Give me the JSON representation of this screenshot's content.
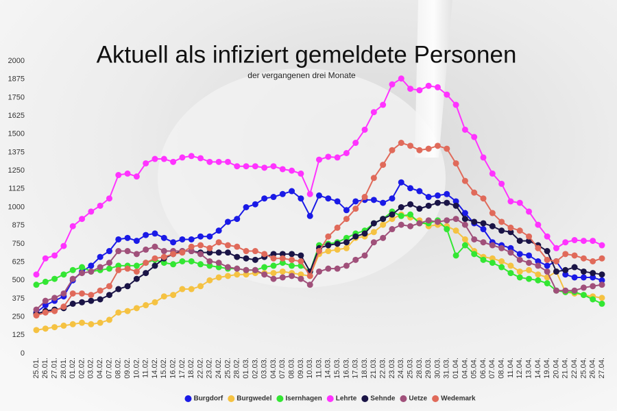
{
  "chart_data": {
    "type": "line",
    "title": "Aktuell als infiziert gemeldete Personen",
    "subtitle": "der vergangenen drei Monate",
    "categories": [
      "25.01.",
      "26.01.",
      "27.01.",
      "28.01.",
      "01.02.",
      "02.02.",
      "03.02.",
      "04.02.",
      "07.02.",
      "08.02.",
      "09.02.",
      "10.02.",
      "11.02.",
      "14.02.",
      "15.02.",
      "16.02.",
      "17.02.",
      "18.02.",
      "22.02.",
      "23.02.",
      "24.02.",
      "25.02.",
      "28.02.",
      "01.03.",
      "02.03.",
      "03.03.",
      "04.03.",
      "07.03.",
      "08.03.",
      "09.03.",
      "10.03.",
      "11.03.",
      "14.03.",
      "15.03.",
      "16.03.",
      "17.03.",
      "18.03.",
      "21.03.",
      "22.03.",
      "23.03.",
      "24.03.",
      "25.03.",
      "28.03.",
      "29.03.",
      "30.03.",
      "31.03.",
      "01.04.",
      "04.04.",
      "05.04.",
      "06.04.",
      "07.04.",
      "08.04.",
      "11.04.",
      "12.04.",
      "13.04.",
      "14.04.",
      "19.04.",
      "20.04.",
      "21.04.",
      "22.04.",
      "25.04.",
      "26.04.",
      "27.04."
    ],
    "series": [
      {
        "name": "Burgdorf",
        "color": "#1a1ae6",
        "values": [
          280,
          330,
          360,
          390,
          500,
          560,
          600,
          660,
          700,
          780,
          790,
          770,
          810,
          820,
          790,
          760,
          780,
          780,
          800,
          800,
          840,
          900,
          920,
          1000,
          1020,
          1060,
          1070,
          1090,
          1110,
          1060,
          940,
          1080,
          1060,
          1040,
          980,
          1040,
          1050,
          1050,
          1030,
          1060,
          1170,
          1130,
          1110,
          1070,
          1080,
          1090,
          1040,
          960,
          890,
          850,
          760,
          740,
          720,
          680,
          670,
          630,
          600,
          630,
          540,
          520,
          520,
          520,
          500
        ]
      },
      {
        "name": "Burgwedel",
        "color": "#f5c242",
        "values": [
          160,
          170,
          180,
          190,
          200,
          210,
          200,
          210,
          230,
          280,
          290,
          310,
          330,
          350,
          390,
          400,
          440,
          440,
          460,
          500,
          520,
          530,
          540,
          540,
          550,
          550,
          550,
          560,
          550,
          540,
          530,
          680,
          700,
          710,
          720,
          790,
          800,
          830,
          880,
          920,
          950,
          930,
          910,
          870,
          880,
          870,
          840,
          780,
          700,
          660,
          650,
          630,
          600,
          560,
          570,
          540,
          520,
          560,
          420,
          410,
          400,
          390,
          380
        ]
      },
      {
        "name": "Isernhagen",
        "color": "#33e633",
        "values": [
          470,
          490,
          510,
          540,
          570,
          590,
          560,
          570,
          580,
          600,
          600,
          600,
          620,
          640,
          620,
          610,
          630,
          630,
          610,
          600,
          590,
          580,
          580,
          570,
          570,
          590,
          600,
          620,
          600,
          600,
          560,
          740,
          750,
          760,
          790,
          820,
          840,
          890,
          920,
          970,
          940,
          950,
          890,
          890,
          910,
          850,
          670,
          740,
          680,
          640,
          620,
          590,
          550,
          520,
          510,
          500,
          480,
          430,
          420,
          420,
          400,
          370,
          340
        ]
      },
      {
        "name": "Lehrte",
        "color": "#ff33ff",
        "values": [
          540,
          650,
          670,
          735,
          870,
          920,
          970,
          1010,
          1060,
          1220,
          1230,
          1210,
          1300,
          1330,
          1330,
          1310,
          1340,
          1350,
          1335,
          1310,
          1310,
          1310,
          1280,
          1280,
          1280,
          1270,
          1280,
          1260,
          1250,
          1230,
          1090,
          1325,
          1345,
          1340,
          1370,
          1440,
          1530,
          1650,
          1700,
          1840,
          1880,
          1810,
          1800,
          1830,
          1820,
          1770,
          1700,
          1530,
          1480,
          1340,
          1230,
          1160,
          1040,
          1030,
          970,
          880,
          800,
          720,
          760,
          775,
          770,
          770,
          740
        ]
      },
      {
        "name": "Sehnde",
        "color": "#1a1446",
        "values": [
          270,
          290,
          300,
          310,
          340,
          350,
          360,
          370,
          400,
          440,
          460,
          510,
          550,
          600,
          650,
          680,
          700,
          700,
          690,
          690,
          690,
          690,
          660,
          650,
          640,
          660,
          680,
          680,
          680,
          670,
          560,
          720,
          740,
          750,
          760,
          800,
          820,
          890,
          920,
          950,
          1000,
          1020,
          990,
          1010,
          1030,
          1030,
          1010,
          920,
          900,
          890,
          870,
          840,
          830,
          770,
          770,
          740,
          700,
          560,
          570,
          590,
          560,
          550,
          540
        ]
      },
      {
        "name": "Uetze",
        "color": "#a0507a",
        "values": [
          300,
          360,
          380,
          410,
          510,
          550,
          560,
          590,
          620,
          700,
          700,
          680,
          710,
          730,
          700,
          700,
          700,
          700,
          680,
          630,
          620,
          590,
          580,
          570,
          570,
          540,
          510,
          520,
          530,
          510,
          470,
          560,
          580,
          580,
          600,
          640,
          670,
          760,
          790,
          850,
          880,
          870,
          890,
          910,
          900,
          910,
          920,
          880,
          780,
          760,
          740,
          720,
          690,
          640,
          620,
          600,
          560,
          430,
          430,
          430,
          450,
          460,
          470
        ]
      },
      {
        "name": "Wedemark",
        "color": "#e06a5a",
        "values": [
          260,
          280,
          290,
          320,
          410,
          410,
          400,
          430,
          460,
          570,
          580,
          560,
          620,
          650,
          660,
          680,
          690,
          730,
          740,
          720,
          760,
          740,
          730,
          700,
          700,
          680,
          650,
          650,
          640,
          630,
          530,
          700,
          800,
          860,
          920,
          990,
          1070,
          1200,
          1290,
          1390,
          1440,
          1420,
          1390,
          1400,
          1420,
          1400,
          1300,
          1180,
          1100,
          1060,
          960,
          900,
          860,
          840,
          800,
          720,
          640,
          630,
          680,
          670,
          650,
          630,
          650
        ]
      }
    ],
    "ylim": [
      0,
      2000
    ],
    "yticks": [
      0,
      125,
      250,
      375,
      500,
      625,
      750,
      875,
      1000,
      1125,
      1250,
      1375,
      1500,
      1625,
      1750,
      1875,
      2000
    ],
    "grid": false,
    "legend": "bottom"
  }
}
